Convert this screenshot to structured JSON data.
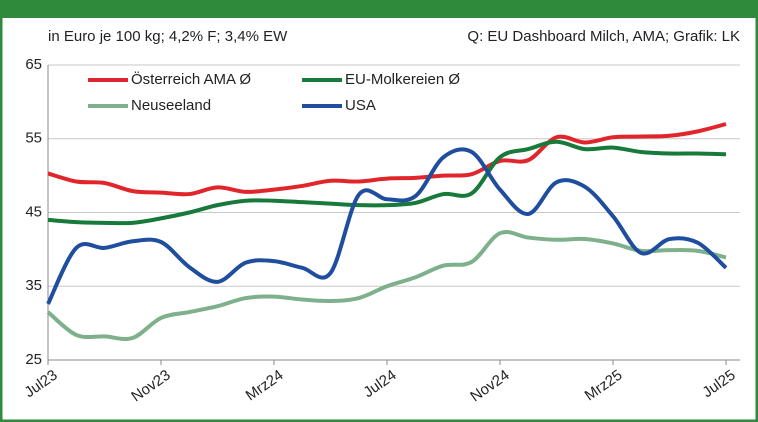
{
  "chart_data": {
    "type": "line",
    "subtitle": "in Euro je 100 kg; 4,2% F; 3,4% EW",
    "source": "Q: EU Dashboard Milch, AMA; Grafik: LK",
    "categories": [
      "Jul23",
      null,
      null,
      null,
      "Nov23",
      null,
      null,
      null,
      "Mrz24",
      null,
      null,
      null,
      "Jul24",
      null,
      null,
      null,
      "Nov24",
      null,
      null,
      null,
      "Mrz25",
      null,
      null,
      null,
      "Jul25"
    ],
    "series": [
      {
        "name": "Österreich AMA Ø",
        "color": "#e0262b",
        "values": [
          50.3,
          49.2,
          49.0,
          47.9,
          47.7,
          47.5,
          48.4,
          47.8,
          48.1,
          48.6,
          49.3,
          49.2,
          49.6,
          49.7,
          50.0,
          50.2,
          52.0,
          52.1,
          55.2,
          54.5,
          55.2,
          55.3,
          55.4,
          56.0,
          57.0
        ]
      },
      {
        "name": "EU-Molkereien Ø",
        "color": "#17793a",
        "values": [
          44.0,
          43.7,
          43.6,
          43.6,
          44.2,
          45.0,
          46.0,
          46.6,
          46.6,
          46.4,
          46.2,
          46.0,
          46.0,
          46.3,
          47.5,
          47.6,
          52.5,
          53.6,
          54.6,
          53.6,
          53.8,
          53.2,
          53.0,
          53.0,
          52.9
        ]
      },
      {
        "name": "Neuseeland",
        "color": "#7fb08c",
        "values": [
          31.5,
          28.4,
          28.2,
          28.0,
          30.7,
          31.5,
          32.3,
          33.4,
          33.6,
          33.2,
          33.0,
          33.4,
          35.0,
          36.2,
          37.8,
          38.3,
          42.2,
          41.6,
          41.3,
          41.4,
          40.8,
          39.8,
          39.9,
          39.8,
          38.9
        ]
      },
      {
        "name": "USA",
        "color": "#1f4e9f",
        "values": [
          32.6,
          40.2,
          40.2,
          41.1,
          41.0,
          37.6,
          35.6,
          38.2,
          38.4,
          37.5,
          36.8,
          47.4,
          46.8,
          47.2,
          52.5,
          53.2,
          48.1,
          44.8,
          49.1,
          48.5,
          44.5,
          39.5,
          41.4,
          40.9,
          37.5
        ]
      }
    ],
    "ylim": [
      25,
      65
    ],
    "yticks": [
      25,
      35,
      45,
      55,
      65
    ],
    "grid": true
  }
}
